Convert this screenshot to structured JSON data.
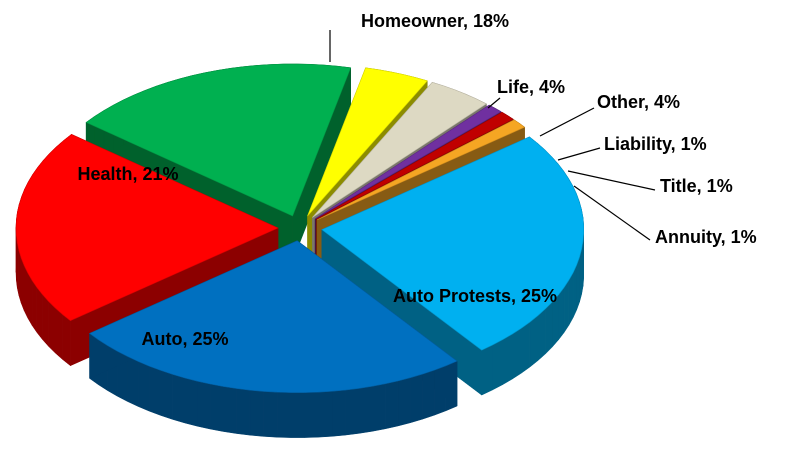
{
  "chart_data": {
    "type": "pie",
    "categories": [
      "Homeowner, 18%",
      "Life, 4%",
      "Other, 4%",
      "Liability, 1%",
      "Title, 1%",
      "Annuity, 1%",
      "Auto Protests, 25%",
      "Auto, 25%",
      "Health, 21%"
    ],
    "values": [
      18,
      4,
      4,
      1,
      1,
      1,
      25,
      25,
      21
    ],
    "colors": [
      "#00b050",
      "#ffff00",
      "#ddd9c3",
      "#7030a0",
      "#c00000",
      "#f5a623",
      "#00b0f0",
      "#0070c0",
      "#ff0000"
    ]
  }
}
